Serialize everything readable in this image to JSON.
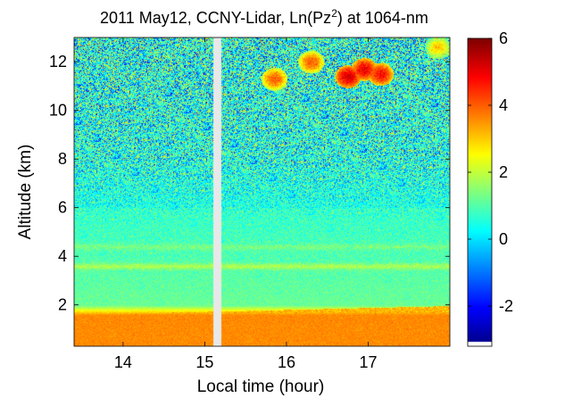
{
  "chart_data": {
    "type": "heatmap",
    "title_parts": {
      "before": "2011 May12, CCNY-Lidar, Ln(Pz",
      "superscript": "2",
      "after": ") at 1064-nm"
    },
    "xlabel": "Local time (hour)",
    "ylabel": "Altitude (km)",
    "xlim": [
      13.4,
      18.0
    ],
    "ylim": [
      0.3,
      13.0
    ],
    "x_ticks": [
      14,
      15,
      16,
      17
    ],
    "y_ticks": [
      2,
      4,
      6,
      8,
      10,
      12
    ],
    "x_tick_labels": [
      "14",
      "15",
      "16",
      "17"
    ],
    "y_tick_labels": [
      "2",
      "4",
      "6",
      "8",
      "10",
      "12"
    ],
    "colorbar": {
      "range": [
        -3.2,
        6
      ],
      "ticks": [
        -2,
        0,
        2,
        4,
        6
      ],
      "tick_labels": [
        "-2",
        "0",
        "2",
        "4",
        "6"
      ],
      "colormap": "jet"
    },
    "data_gap": {
      "x_start": 15.1,
      "x_end": 15.2
    },
    "layers": [
      {
        "name": "boundary layer",
        "altitude_km": [
          0.3,
          1.6
        ],
        "value": 3.6
      },
      {
        "name": "residual layer",
        "altitude_km": [
          2.0,
          6.0
        ],
        "value": 1.2
      },
      {
        "name": "elevated band",
        "altitude_km": 3.6,
        "value": 1.6
      },
      {
        "name": "elevated band",
        "altitude_km": 4.4,
        "value": 1.1
      },
      {
        "name": "noise region",
        "altitude_km": [
          6.0,
          13.0
        ],
        "value": 0.5
      }
    ],
    "cloud_features": [
      {
        "x": 16.75,
        "y": 11.4,
        "value": 5.2
      },
      {
        "x": 16.95,
        "y": 11.7,
        "value": 5.0
      },
      {
        "x": 17.15,
        "y": 11.5,
        "value": 4.8
      },
      {
        "x": 16.3,
        "y": 12.0,
        "value": 4.0
      },
      {
        "x": 15.85,
        "y": 11.3,
        "value": 4.0
      },
      {
        "x": 17.85,
        "y": 12.6,
        "value": 3.0
      }
    ]
  }
}
